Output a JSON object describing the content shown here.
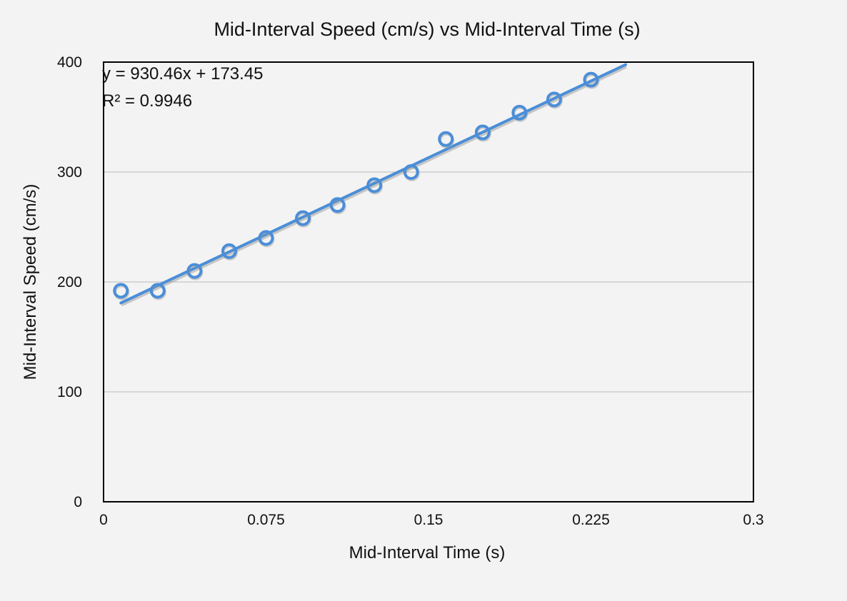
{
  "chart_data": {
    "type": "scatter",
    "title": "Mid-Interval Speed (cm/s) vs Mid-Interval Time (s)",
    "xlabel": "Mid-Interval Time (s)",
    "ylabel": "Mid-Interval Speed (cm/s)",
    "xlim": [
      0,
      0.3
    ],
    "ylim": [
      0,
      400
    ],
    "x_ticks": [
      0,
      0.075,
      0.15,
      0.225,
      0.3
    ],
    "x_tick_labels": [
      "0",
      "0.075",
      "0.15",
      "0.225",
      "0.3"
    ],
    "y_ticks": [
      0,
      100,
      200,
      300,
      400
    ],
    "y_tick_labels": [
      "0",
      "100",
      "200",
      "300",
      "400"
    ],
    "grid": "horizontal",
    "series": [
      {
        "name": "Mid-Interval Speed",
        "x": [
          0.008,
          0.025,
          0.042,
          0.058,
          0.075,
          0.092,
          0.108,
          0.125,
          0.142,
          0.158,
          0.175,
          0.192,
          0.208,
          0.225
        ],
        "y": [
          192,
          192,
          210,
          228,
          240,
          258,
          270,
          288,
          300,
          330,
          336,
          354,
          366,
          384
        ],
        "color": "#4a8ed8",
        "marker": "open-circle"
      }
    ],
    "trendline": {
      "type": "linear",
      "slope": 930.46,
      "intercept": 173.45,
      "x_range": [
        0.008,
        0.241
      ],
      "color": "#4a8ed8",
      "equation_label": "y = 930.46x + 173.45",
      "r2_label": "R² = 0.9946"
    }
  }
}
